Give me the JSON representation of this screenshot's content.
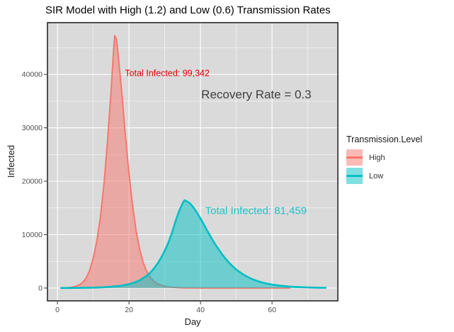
{
  "chart_data": {
    "type": "area",
    "title": "SIR Model with High (1.2) and Low (0.6) Transmission Rates",
    "xlabel": "Day",
    "ylabel": "Infected",
    "xlim": [
      -2.8,
      78.4
    ],
    "ylim": [
      -2400,
      49700
    ],
    "x_ticks": [
      0,
      20,
      40,
      60
    ],
    "x_minor_ticks": [
      10,
      30,
      50,
      70
    ],
    "y_ticks": [
      0,
      10000,
      20000,
      30000,
      40000
    ],
    "y_minor_ticks": [
      5000,
      15000,
      25000,
      35000,
      45000
    ],
    "grid": true,
    "legend_position": "right",
    "series": [
      {
        "name": "High",
        "line_color": "#F8766D",
        "fill_color": "rgba(248,118,109,0.5)",
        "peak": {
          "day": 16,
          "infected": 47300
        },
        "points": [
          [
            1,
            25
          ],
          [
            2,
            45
          ],
          [
            3,
            85
          ],
          [
            4,
            160
          ],
          [
            5,
            300
          ],
          [
            6,
            560
          ],
          [
            7,
            1020
          ],
          [
            8,
            1850
          ],
          [
            9,
            3300
          ],
          [
            10,
            5600
          ],
          [
            11,
            8800
          ],
          [
            12,
            13200
          ],
          [
            13,
            19500
          ],
          [
            14,
            27500
          ],
          [
            15,
            37000
          ],
          [
            15.5,
            42500
          ],
          [
            16,
            47300
          ],
          [
            16.5,
            46600
          ],
          [
            17,
            43500
          ],
          [
            18,
            36500
          ],
          [
            19,
            28500
          ],
          [
            20,
            21500
          ],
          [
            21,
            15500
          ],
          [
            22,
            10700
          ],
          [
            23,
            7200
          ],
          [
            24,
            4700
          ],
          [
            25,
            3050
          ],
          [
            26,
            1950
          ],
          [
            27,
            1250
          ],
          [
            28,
            800
          ],
          [
            29,
            520
          ],
          [
            30,
            340
          ],
          [
            31,
            225
          ],
          [
            32,
            150
          ],
          [
            33,
            100
          ],
          [
            34,
            65
          ],
          [
            35,
            43
          ],
          [
            36,
            28
          ],
          [
            38,
            12
          ],
          [
            40,
            5
          ],
          [
            42,
            2
          ],
          [
            45,
            1
          ],
          [
            50,
            0
          ],
          [
            55,
            0
          ],
          [
            60,
            0
          ],
          [
            65,
            0
          ]
        ]
      },
      {
        "name": "Low",
        "line_color": "#00BFC4",
        "fill_color": "rgba(0,191,196,0.5)",
        "peak": {
          "day": 35.5,
          "infected": 16450
        },
        "points": [
          [
            1,
            10
          ],
          [
            3,
            16
          ],
          [
            5,
            25
          ],
          [
            7,
            40
          ],
          [
            9,
            62
          ],
          [
            11,
            97
          ],
          [
            13,
            150
          ],
          [
            15,
            235
          ],
          [
            17,
            370
          ],
          [
            19,
            580
          ],
          [
            21,
            920
          ],
          [
            23,
            1450
          ],
          [
            25,
            2300
          ],
          [
            26,
            2900
          ],
          [
            27,
            3700
          ],
          [
            28,
            4600
          ],
          [
            29,
            5700
          ],
          [
            30,
            7000
          ],
          [
            31,
            8500
          ],
          [
            32,
            10300
          ],
          [
            33,
            12500
          ],
          [
            34,
            14400
          ],
          [
            35,
            15900
          ],
          [
            35.5,
            16450
          ],
          [
            36,
            16300
          ],
          [
            37,
            15900
          ],
          [
            38,
            15100
          ],
          [
            39,
            14100
          ],
          [
            40,
            13000
          ],
          [
            41,
            11800
          ],
          [
            42,
            10600
          ],
          [
            43,
            9400
          ],
          [
            44,
            8300
          ],
          [
            45,
            7300
          ],
          [
            46,
            6350
          ],
          [
            47,
            5500
          ],
          [
            48,
            4750
          ],
          [
            49,
            4050
          ],
          [
            50,
            3450
          ],
          [
            52,
            2500
          ],
          [
            54,
            1800
          ],
          [
            56,
            1280
          ],
          [
            58,
            920
          ],
          [
            60,
            650
          ],
          [
            62,
            460
          ],
          [
            64,
            330
          ],
          [
            66,
            230
          ],
          [
            68,
            160
          ],
          [
            70,
            115
          ],
          [
            72,
            80
          ],
          [
            74,
            57
          ],
          [
            75,
            48
          ]
        ]
      }
    ],
    "annotations": [
      {
        "name": "annotation-total-infected-high",
        "text": "Total Infected: 99,342",
        "color": "#E60000",
        "x": 30.7,
        "y": 40290,
        "font_size": 12.5
      },
      {
        "name": "annotation-recovery-rate",
        "text": "Recovery Rate = 0.3",
        "color": "#404040",
        "x": 55.6,
        "y": 36320,
        "font_size": 17
      },
      {
        "name": "annotation-total-infected-low",
        "text": "Total Infected: 81,459",
        "color": "#1EC4C9",
        "x": 55.5,
        "y": 14570,
        "font_size": 15
      }
    ]
  },
  "legend": {
    "title": "Transmission.Level",
    "items": [
      {
        "label": "High",
        "line_color": "#F8766D",
        "fill_color": "rgba(248,118,109,0.5)"
      },
      {
        "label": "Low",
        "line_color": "#00BFC4",
        "fill_color": "rgba(0,191,196,0.5)"
      }
    ]
  },
  "colors": {
    "figure_bg": "#FFFFFF",
    "panel_bg": "#DADADA",
    "grid_major": "#FFFFFF",
    "grid_minor": "#FFFFFF",
    "panel_border": "#1a1a1a",
    "tick_mark": "#333333",
    "tick_label": "#4D4D4D",
    "axis_title": "#1a1a1a",
    "title_color": "#000000"
  }
}
